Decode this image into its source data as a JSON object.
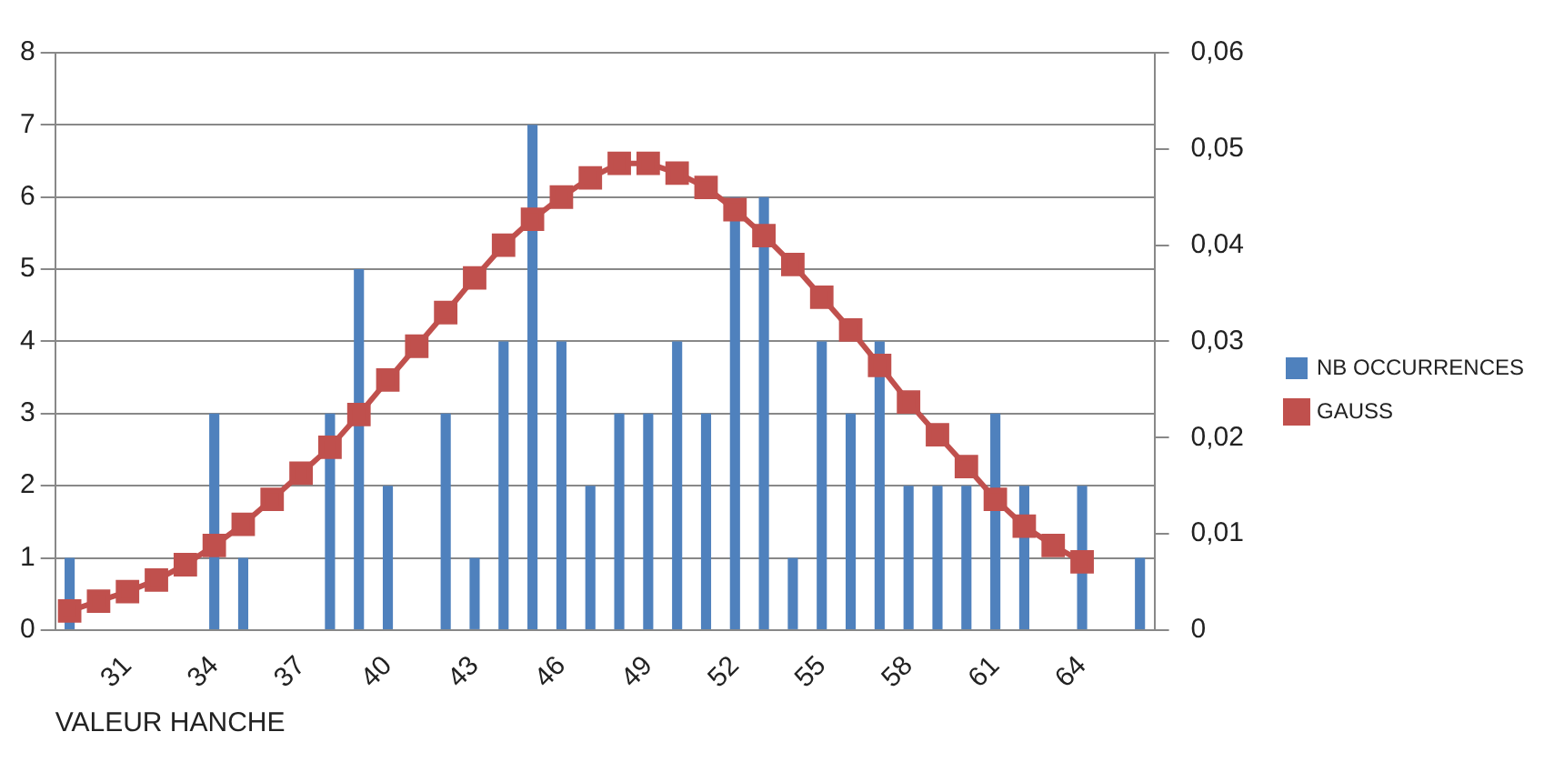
{
  "chart_data": {
    "type": "bar",
    "xlabel": "VALEUR HANCHE",
    "categories": [
      null,
      null,
      "31",
      null,
      null,
      "34",
      null,
      null,
      "37",
      null,
      null,
      "40",
      null,
      null,
      "43",
      null,
      null,
      "46",
      null,
      null,
      "49",
      null,
      null,
      "52",
      null,
      null,
      "55",
      null,
      null,
      "58",
      null,
      null,
      "61",
      null,
      null,
      "64",
      null,
      null
    ],
    "series": [
      {
        "name": "NB OCCURRENCES",
        "color": "#4f81bd",
        "values": [
          1,
          0,
          0,
          0,
          null,
          3,
          1,
          0,
          0,
          3,
          5,
          2,
          0,
          3,
          1,
          4,
          7,
          4,
          2,
          3,
          3,
          4,
          3,
          6,
          6,
          1,
          4,
          3,
          4,
          2,
          2,
          2,
          3,
          2,
          0,
          2,
          0,
          1
        ]
      },
      {
        "name": "GAUSS",
        "type": "line",
        "axis": "y2",
        "color": "#c0504d",
        "marker": "square",
        "values": [
          0.002,
          0.003,
          0.004,
          0.0052,
          0.0068,
          0.0088,
          0.011,
          0.0136,
          0.0163,
          0.019,
          0.0224,
          0.026,
          0.0295,
          0.033,
          0.0366,
          0.04,
          0.0427,
          0.045,
          0.047,
          0.0485,
          0.0485,
          0.0475,
          0.046,
          0.0437,
          0.041,
          0.038,
          0.0346,
          0.0312,
          0.0275,
          0.0237,
          0.0203,
          0.017,
          0.0136,
          0.0108,
          0.0088,
          0.0071,
          null,
          null
        ]
      }
    ],
    "ylim": [
      0,
      8
    ],
    "yticks": [
      0,
      1,
      2,
      3,
      4,
      5,
      6,
      7,
      8
    ],
    "y2lim": [
      0,
      0.06
    ],
    "y2ticks": [
      0,
      {
        "value": 0.01,
        "label": "0,01"
      },
      {
        "value": 0.02,
        "label": "0,02"
      },
      {
        "value": 0.03,
        "label": "0,03"
      },
      {
        "value": 0.04,
        "label": "0,04"
      },
      {
        "value": 0.05,
        "label": "0,05"
      },
      {
        "value": 0.06,
        "label": "0,06"
      }
    ],
    "grid": "y",
    "legend": "right"
  }
}
